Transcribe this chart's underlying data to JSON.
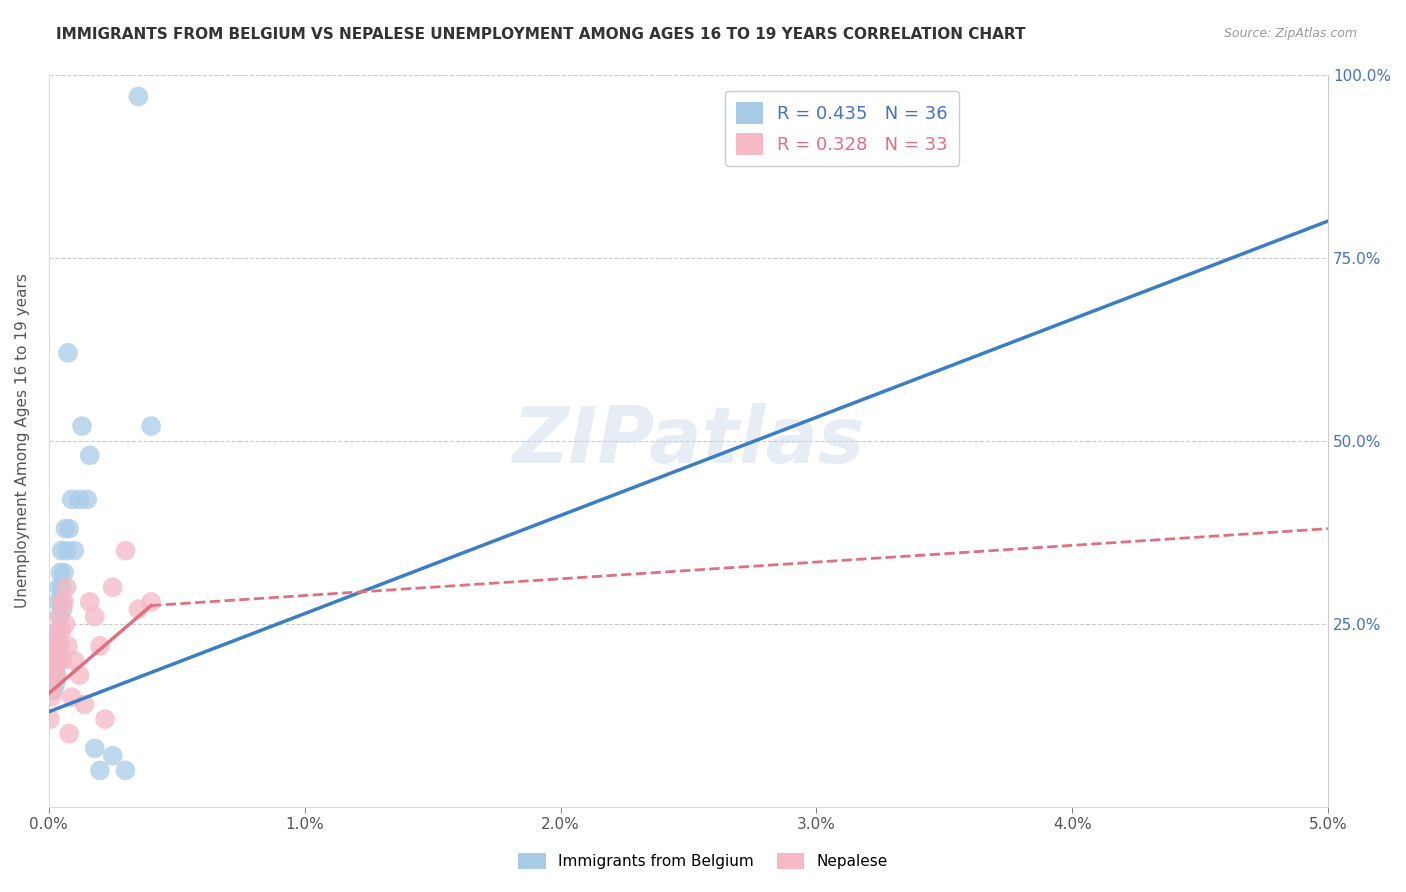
{
  "title": "IMMIGRANTS FROM BELGIUM VS NEPALESE UNEMPLOYMENT AMONG AGES 16 TO 19 YEARS CORRELATION CHART",
  "source": "Source: ZipAtlas.com",
  "ylabel": "Unemployment Among Ages 16 to 19 years",
  "legend1_label": "Immigrants from Belgium",
  "legend2_label": "Nepalese",
  "r1": 0.435,
  "n1": 36,
  "r2": 0.328,
  "n2": 33,
  "blue_color": "#a8cce8",
  "pink_color": "#f5b8c4",
  "blue_line_color": "#3a7ec6",
  "pink_line_color": "#e07080",
  "watermark": "ZIPatlas",
  "blue_x": [
    0.0001,
    0.00015,
    0.0002,
    0.0002,
    0.00022,
    0.00025,
    0.00028,
    0.0003,
    0.0003,
    0.00032,
    0.00035,
    0.00035,
    0.0004,
    0.00042,
    0.00045,
    0.00048,
    0.0005,
    0.00052,
    0.00055,
    0.0006,
    0.00065,
    0.0007,
    0.00075,
    0.0008,
    0.0009,
    0.001,
    0.0012,
    0.0013,
    0.0015,
    0.0016,
    0.0018,
    0.002,
    0.0025,
    0.003,
    0.0035,
    0.004
  ],
  "blue_y": [
    0.17,
    0.18,
    0.2,
    0.16,
    0.22,
    0.19,
    0.17,
    0.21,
    0.18,
    0.24,
    0.28,
    0.22,
    0.3,
    0.26,
    0.32,
    0.28,
    0.35,
    0.3,
    0.27,
    0.32,
    0.38,
    0.35,
    0.62,
    0.38,
    0.42,
    0.35,
    0.42,
    0.52,
    0.42,
    0.48,
    0.08,
    0.05,
    0.07,
    0.05,
    0.97,
    0.52
  ],
  "pink_x": [
    5e-05,
    0.0001,
    0.00015,
    0.0002,
    0.00022,
    0.00025,
    0.0003,
    0.0003,
    0.00032,
    0.00035,
    0.0004,
    0.00042,
    0.00045,
    0.0005,
    0.00052,
    0.00055,
    0.0006,
    0.00065,
    0.0007,
    0.00075,
    0.0008,
    0.0009,
    0.001,
    0.0012,
    0.0014,
    0.0016,
    0.0018,
    0.002,
    0.0022,
    0.0025,
    0.003,
    0.0035,
    0.004
  ],
  "pink_y": [
    0.12,
    0.15,
    0.16,
    0.2,
    0.18,
    0.22,
    0.2,
    0.18,
    0.22,
    0.24,
    0.2,
    0.26,
    0.22,
    0.24,
    0.28,
    0.2,
    0.28,
    0.25,
    0.3,
    0.22,
    0.1,
    0.15,
    0.2,
    0.18,
    0.14,
    0.28,
    0.26,
    0.22,
    0.12,
    0.3,
    0.35,
    0.27,
    0.28
  ],
  "blue_line_x0": 0.0,
  "blue_line_y0": 0.13,
  "blue_line_x1": 0.05,
  "blue_line_y1": 0.8,
  "pink_line_x0": 0.0,
  "pink_line_y0": 0.155,
  "pink_line_x1_solid": 0.004,
  "pink_line_y1_solid": 0.275,
  "pink_line_x1_dash": 0.05,
  "pink_line_y1_dash": 0.38,
  "xlim": [
    0,
    0.05
  ],
  "ylim": [
    0,
    1.0
  ],
  "xtick_positions": [
    0,
    0.01,
    0.02,
    0.03,
    0.04,
    0.05
  ],
  "xtick_labels": [
    "0.0%",
    "1.0%",
    "2.0%",
    "3.0%",
    "4.0%",
    "5.0%"
  ],
  "ytick_positions": [
    0,
    0.25,
    0.5,
    0.75,
    1.0
  ],
  "ytick_labels_right": [
    "",
    "25.0%",
    "50.0%",
    "75.0%",
    "100.0%"
  ]
}
